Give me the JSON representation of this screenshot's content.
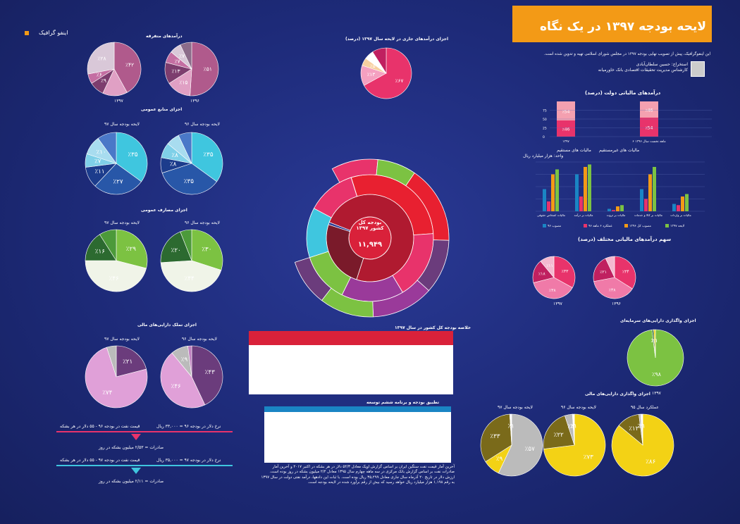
{
  "header": {
    "title": "لایحه بودجه ۱۳۹۷ در یک نگاه",
    "intro": "این اینفوگرافیک، پیش از تصویب نهایی بودجه ۱۳۹۷ در مجلس شورای اسلامی تهیه و تدوین شده است.",
    "author": "استخراج: حسین سلطان‌آبادی",
    "author_role": "کارشناس مدیریت تحقیقات اقتصادی بانک خاورمیانه",
    "brand": "اینفو گرافیک"
  },
  "colors": {
    "accent": "#f39a16",
    "navy": "#1d2a78",
    "pink": "#e8336b",
    "red": "#d9213a",
    "green": "#7cc242",
    "cyan": "#3fc6df",
    "yellow": "#f3d215"
  },
  "center": {
    "title": "بودجه کل کشور ۱۳۹۷",
    "value": "۱۱,۹۴۹"
  },
  "sections": {
    "diversified": "درآمدهای متفرقه",
    "current_rev": "اجزای درآمدهای جاری در لایحه سال ۱۳۹۷ (درصد)",
    "gen_sources": "اجزای منابع عمومی",
    "gen_exp": "اجزای مصارف عمومی",
    "fin_assets": "اجزای تملک دارایی‌های مالی",
    "tax_rev": "درآمدهای مالیاتی دولت (درصد)",
    "tax_share": "سهم درآمدهای مالیاتی مختلف (درصد)",
    "cap_assets": "اجزای واگذاری دارایی‌های سرمایه‌ای",
    "fin_assets2": "اجزای واگذاری دارایی‌های مالی",
    "summary": "خلاصه بودجه کل کشور در سال ۱۳۹۷",
    "dev": "تطبیق بودجه و برنامه ششم توسعه"
  },
  "labels": {
    "b97": "لایحه بودجه سال ۹۷",
    "b96": "لایحه بودجه سال ۹۶",
    "y1397": "۱۳۹۷",
    "y1396": "۱۳۹۶",
    "perf95": "عملکرد سال ۹۵",
    "direct": "مالیات های مستقیم",
    "indirect": "مالیات های غیرمستقیم",
    "unit": "واحد: هزار میلیارد ریال"
  },
  "oil": {
    "line1": "نرخ دلار در بودجه ۹۶ = ۳۳,۰۰۰ ریال",
    "price1": "قیمت نفت در بودجه ۹۶ - ۵۵ دلار در هر بشکه",
    "exp1": "صادرات = ۲/۵۳ میلیون بشکه در روز",
    "line2": "نرخ دلار در بودجه ۹۷ = ۳۵,۰۰۰ ریال",
    "price2": "قیمت نفت در بودجه ۹۷ - ۵۵ دلار در هر بشکه",
    "exp2": "صادرات = ۲/۱۱ میلیون بشکه در روز"
  },
  "footnote": "آخرین آمار قیمت نفت سنگین ایران بر اساس گزارش اوپک معادل ۵۴/۳ دلار در هر بشکه در اکتبر ۲۰۱۷ و آخرین آمار صادرات نفت بر اساس گزارش بانک مرکزی در سه ماهه چهارم سال ۱۳۹۵ معادل ۲/۴ میلیون بشکه در روز بوده است. ارزش دلار در تاریخ ۲۰ آذرماه سال جاری معادل ۳۵,۲۹۹ ریال بوده است. با ثبات این دادهها، درآمد نفتی دولت در سال ۱۳۹۷ به رقم ۱,۱۹۸ هزار میلیارد ریال خواهد رسید که بیش از رقم برآورد شده در لایحه بودجه است.",
  "chart_data": [
    {
      "type": "pie",
      "title": "درآمدهای متفرقه",
      "year": "۱۳۹۷",
      "values": [
        42,
        15,
        9,
        6,
        28
      ],
      "labels": [
        "٪۴۲",
        "",
        "٪۹",
        "٪۶",
        "٪۲۸"
      ]
    },
    {
      "type": "pie",
      "title": "درآمدهای متفرقه",
      "year": "۱۳۹۶",
      "values": [
        51,
        15,
        13,
        7,
        7,
        7
      ],
      "labels": [
        "٪۵۱",
        "٪۱۵",
        "٪۱۳",
        "٪۷",
        "٪۷",
        ""
      ]
    },
    {
      "type": "pie",
      "title": "اجزای درآمدهای جاری",
      "values": [
        67,
        13,
        5,
        6,
        9
      ],
      "labels": [
        "٪۶۷",
        "٪۱۳",
        "٪۵",
        "",
        ""
      ]
    },
    {
      "type": "pie",
      "title": "اجزای منابع عمومی ۹۷",
      "values": [
        35,
        27,
        11,
        7,
        10,
        10
      ],
      "labels": [
        "٪۳۵",
        "٪۲۷",
        "٪۱۱",
        "٪۷",
        "٪۱۰",
        ""
      ]
    },
    {
      "type": "pie",
      "title": "اجزای منابع عمومی ۹۶",
      "values": [
        35,
        35,
        8,
        8,
        7,
        7
      ],
      "labels": [
        "٪۳۵",
        "٪۳۵",
        "٪۸",
        "٪۸",
        "",
        ""
      ]
    },
    {
      "type": "pie",
      "title": "اجزای مصارف عمومی ۹۷",
      "values": [
        29,
        46,
        16,
        9
      ],
      "labels": [
        "٪۲۹",
        "٪۴۶",
        "٪۱۶",
        ""
      ]
    },
    {
      "type": "pie",
      "title": "اجزای مصارف عمومی ۹۶",
      "values": [
        30,
        44,
        20,
        6
      ],
      "labels": [
        "٪۳۰",
        "٪۴۴",
        "٪۲۰",
        ""
      ]
    },
    {
      "type": "pie",
      "title": "اجزای تملک دارایی های مالی ۹۷",
      "values": [
        21,
        74,
        5
      ],
      "labels": [
        "٪۲۱",
        "٪۷۴",
        ""
      ]
    },
    {
      "type": "pie",
      "title": "اجزای تملک دارایی های مالی ۹۶",
      "values": [
        43,
        46,
        9,
        2
      ],
      "labels": [
        "٪۴۳",
        "٪۴۶",
        "٪۹",
        ""
      ]
    },
    {
      "type": "bar",
      "title": "درآمدهای مالیاتی دولت (درصد)",
      "categories": [
        "۱۳۹۷",
        "۶ ماهه نخست سال ۱۳۹۶"
      ],
      "series": [
        {
          "name": "مالیات های مستقیم",
          "values": [
            46,
            54
          ]
        },
        {
          "name": "مالیات های غیرمستقیم",
          "values": [
            54,
            46
          ]
        }
      ],
      "ylim": [
        0,
        100
      ]
    },
    {
      "type": "bar",
      "title": "",
      "ylabel": "واحد: هزار میلیارد ریال",
      "categories": [
        "مالیات اشخاص حقوقی",
        "مالیات بر درآمد",
        "مالیات بر ثروت",
        "مالیات بر کالا و خدمات",
        "مالیات بر واردات"
      ],
      "series": [
        {
          "name": "۹۶ مصوب",
          "values": [
            90,
            150,
            10,
            90,
            30
          ]
        },
        {
          "name": "عملکرد ۶ ماهه ۹۶",
          "values": [
            40,
            60,
            5,
            50,
            25
          ]
        },
        {
          "name": "مصوب کل ۱۳۹۶",
          "values": [
            150,
            180,
            20,
            150,
            60
          ]
        },
        {
          "name": "لایحه ۱۳۹۷",
          "values": [
            170,
            190,
            25,
            180,
            70
          ]
        }
      ]
    },
    {
      "type": "pie",
      "title": "سهم درآمدهای مالیاتی",
      "year": "۱۳۹۷",
      "values": [
        33,
        38,
        18,
        11
      ],
      "labels": [
        "٪۳۳",
        "٪۳۸",
        "٪۱۸",
        "٪۱۱"
      ]
    },
    {
      "type": "pie",
      "title": "سهم درآمدهای مالیاتی",
      "year": "۱۳۹۶",
      "values": [
        34,
        38,
        21,
        7
      ],
      "labels": [
        "٪۳۴",
        "٪۳۸",
        "٪۲۱",
        ""
      ]
    },
    {
      "type": "pie",
      "title": "اجزای واگذاری دارایی های سرمایه ای",
      "year": "۱۳۹۷",
      "values": [
        98,
        1,
        1
      ],
      "labels": [
        "٪۹۸",
        "٪۱",
        "٪۱"
      ]
    },
    {
      "type": "pie",
      "title": "اجزای واگذاری دارایی های مالی ۹۷",
      "values": [
        57,
        9,
        33,
        1
      ],
      "labels": [
        "٪۵۷",
        "٪۹",
        "٪۳۳",
        "٪۱"
      ]
    },
    {
      "type": "pie",
      "title": "اجزای واگذاری دارایی های مالی ۹۶",
      "values": [
        73,
        22,
        4,
        1
      ],
      "labels": [
        "٪۷۳",
        "٪۲۲",
        "٪۴",
        "٪۱"
      ]
    },
    {
      "type": "pie",
      "title": "اجزای واگذاری دارایی های مالی ۹۵",
      "values": [
        86,
        12,
        1,
        1
      ],
      "labels": [
        "٪۸۶",
        "٪۱۲",
        "٪۱",
        "٪۱"
      ]
    }
  ]
}
